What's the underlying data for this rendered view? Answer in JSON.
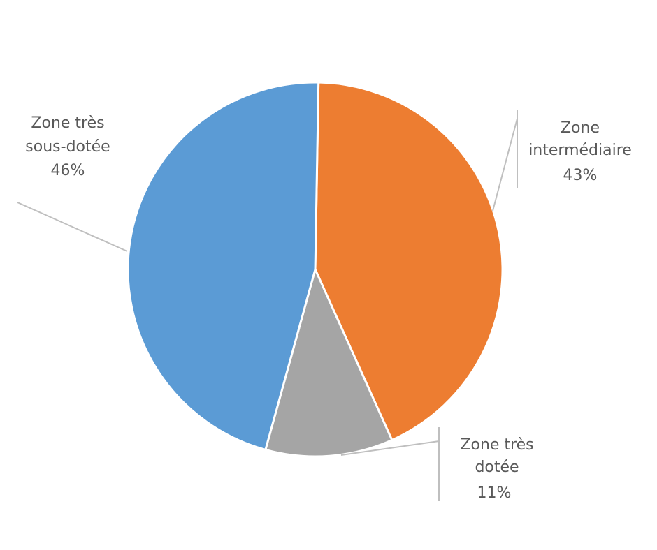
{
  "chart_data": {
    "type": "pie",
    "title": "",
    "slices": [
      {
        "name_lines": [
          "Zone",
          "intermédiaire"
        ],
        "value": 43,
        "value_label": "43%",
        "color": "#ED7D31"
      },
      {
        "name_lines": [
          "Zone très",
          "dotée"
        ],
        "value": 11,
        "value_label": "11%",
        "color": "#A5A5A5"
      },
      {
        "name_lines": [
          "Zone très",
          "sous-dotée"
        ],
        "value": 46,
        "value_label": "46%",
        "color": "#5B9BD5"
      }
    ],
    "legend": "none",
    "data_labels": "outside with leader lines"
  }
}
